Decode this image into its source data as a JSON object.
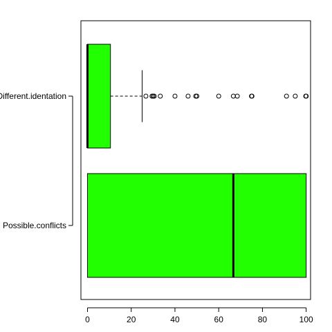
{
  "chart_data": {
    "type": "boxplot",
    "orientation": "horizontal",
    "title": "",
    "xlabel": "",
    "ylabel": "",
    "xlim": [
      -3,
      102
    ],
    "x_ticks": [
      0,
      20,
      40,
      60,
      80,
      100
    ],
    "x_tick_labels": [
      "0",
      "20",
      "40",
      "60",
      "80",
      "100"
    ],
    "box_color": "#22ff00",
    "series": [
      {
        "name": "Different.identation",
        "min": 0,
        "q1": 0,
        "median": 0,
        "q3": 10.5,
        "whisker_high": 25,
        "outliers": [
          26.7,
          29.5,
          30,
          30.5,
          33.3,
          40,
          46,
          49.5,
          50,
          60,
          66.7,
          68.5,
          75,
          75.2,
          91,
          95,
          99.8,
          100
        ]
      },
      {
        "name": "Possible.conflicts",
        "min": 0,
        "q1": 0,
        "median": 66.7,
        "q3": 100,
        "whisker_high": 100,
        "outliers": []
      }
    ]
  }
}
